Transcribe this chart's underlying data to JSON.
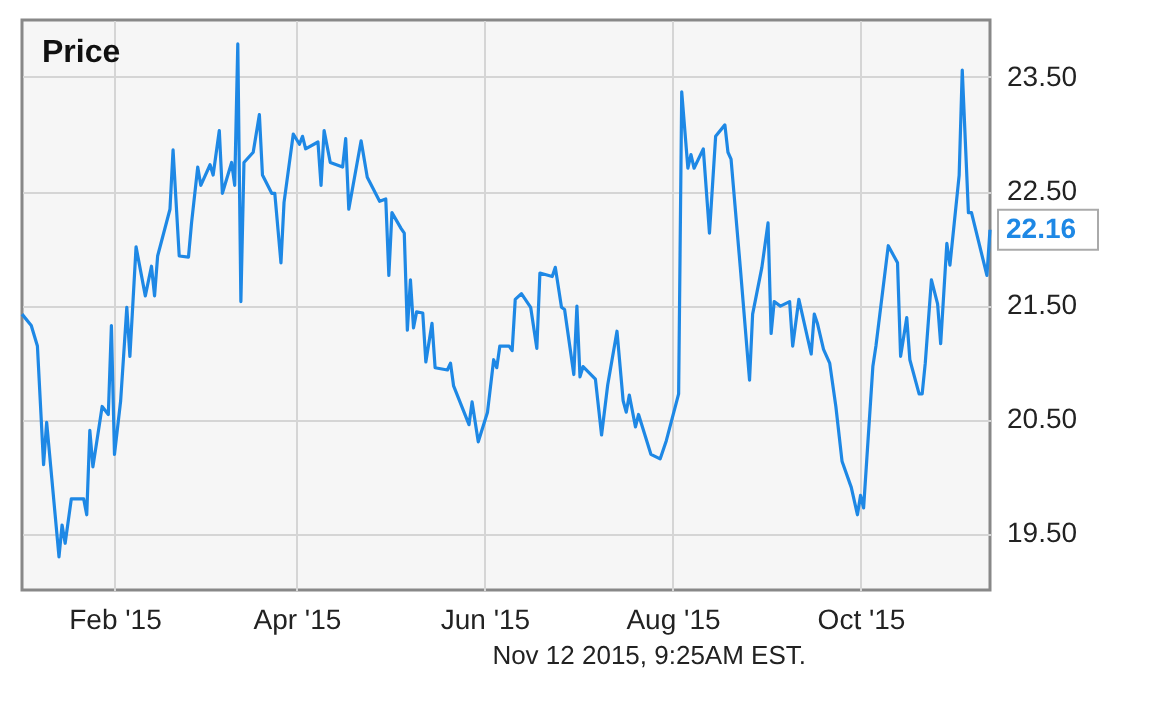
{
  "chart_data": {
    "type": "line",
    "title": "Price",
    "x": [
      "2015-01-02",
      "2015-01-05",
      "2015-01-07",
      "2015-01-09",
      "2015-01-10",
      "2015-01-14",
      "2015-01-15",
      "2015-01-16",
      "2015-01-18",
      "2015-01-22",
      "2015-01-23",
      "2015-01-24",
      "2015-01-25",
      "2015-01-28",
      "2015-01-30",
      "2015-01-31",
      "2015-02-01",
      "2015-02-03",
      "2015-02-05",
      "2015-02-06",
      "2015-02-08",
      "2015-02-11",
      "2015-02-13",
      "2015-02-14",
      "2015-02-15",
      "2015-02-19",
      "2015-02-20",
      "2015-02-22",
      "2015-02-25",
      "2015-02-26",
      "2015-02-28",
      "2015-03-01",
      "2015-03-04",
      "2015-03-05",
      "2015-03-07",
      "2015-03-08",
      "2015-03-11",
      "2015-03-12",
      "2015-03-13",
      "2015-03-14",
      "2015-03-15",
      "2015-03-18",
      "2015-03-20",
      "2015-03-21",
      "2015-03-24",
      "2015-03-25",
      "2015-03-27",
      "2015-03-28",
      "2015-03-31",
      "2015-04-02",
      "2015-04-03",
      "2015-04-04",
      "2015-04-08",
      "2015-04-09",
      "2015-04-10",
      "2015-04-12",
      "2015-04-16",
      "2015-04-17",
      "2015-04-18",
      "2015-04-22",
      "2015-04-24",
      "2015-04-28",
      "2015-04-30",
      "2015-05-01",
      "2015-05-02",
      "2015-05-05",
      "2015-05-06",
      "2015-05-07",
      "2015-05-08",
      "2015-05-09",
      "2015-05-10",
      "2015-05-12",
      "2015-05-13",
      "2015-05-15",
      "2015-05-16",
      "2015-05-20",
      "2015-05-21",
      "2015-05-22",
      "2015-05-27",
      "2015-05-28",
      "2015-05-30",
      "2015-06-02",
      "2015-06-04",
      "2015-06-05",
      "2015-06-06",
      "2015-06-09",
      "2015-06-10",
      "2015-06-11",
      "2015-06-13",
      "2015-06-16",
      "2015-06-18",
      "2015-06-19",
      "2015-06-23",
      "2015-06-24",
      "2015-06-26",
      "2015-06-27",
      "2015-06-30",
      "2015-07-01",
      "2015-07-02",
      "2015-07-03",
      "2015-07-07",
      "2015-07-09",
      "2015-07-11",
      "2015-07-14",
      "2015-07-16",
      "2015-07-17",
      "2015-07-18",
      "2015-07-20",
      "2015-07-21",
      "2015-07-25",
      "2015-07-28",
      "2015-07-30",
      "2015-08-03",
      "2015-08-04",
      "2015-08-06",
      "2015-08-07",
      "2015-08-08",
      "2015-08-11",
      "2015-08-13",
      "2015-08-15",
      "2015-08-18",
      "2015-08-19",
      "2015-08-20",
      "2015-08-23",
      "2015-08-26",
      "2015-08-27",
      "2015-08-30",
      "2015-09-01",
      "2015-09-02",
      "2015-09-03",
      "2015-09-05",
      "2015-09-08",
      "2015-09-09",
      "2015-09-11",
      "2015-09-15",
      "2015-09-16",
      "2015-09-17",
      "2015-09-19",
      "2015-09-21",
      "2015-09-23",
      "2015-09-25",
      "2015-09-28",
      "2015-09-30",
      "2015-10-01",
      "2015-10-02",
      "2015-10-05",
      "2015-10-06",
      "2015-10-10",
      "2015-10-13",
      "2015-10-14",
      "2015-10-16",
      "2015-10-17",
      "2015-10-20",
      "2015-10-21",
      "2015-10-22",
      "2015-10-24",
      "2015-10-26",
      "2015-10-27",
      "2015-10-29",
      "2015-10-30",
      "2015-11-02",
      "2015-11-03",
      "2015-11-05",
      "2015-11-06",
      "2015-11-11",
      "2015-11-12"
    ],
    "series": [
      {
        "color": "#1e88e5",
        "values": [
          21.42,
          21.32,
          21.14,
          20.1,
          20.47,
          19.29,
          19.57,
          19.41,
          19.8,
          19.8,
          19.66,
          20.4,
          20.08,
          20.61,
          20.54,
          21.32,
          20.19,
          20.66,
          21.48,
          21.05,
          22.01,
          21.58,
          21.84,
          21.58,
          21.93,
          22.34,
          22.86,
          21.93,
          21.92,
          22.22,
          22.71,
          22.55,
          22.73,
          22.64,
          23.03,
          22.48,
          22.75,
          22.55,
          23.79,
          21.53,
          22.75,
          22.84,
          23.17,
          22.64,
          22.48,
          22.48,
          21.87,
          22.4,
          23.0,
          22.91,
          22.98,
          22.87,
          22.93,
          22.55,
          23.03,
          22.75,
          22.71,
          22.96,
          22.34,
          22.94,
          22.62,
          22.41,
          22.43,
          21.76,
          22.31,
          22.17,
          22.13,
          21.28,
          21.72,
          21.3,
          21.44,
          21.43,
          21.0,
          21.34,
          20.95,
          20.93,
          20.99,
          20.79,
          20.45,
          20.65,
          20.3,
          20.56,
          21.02,
          20.95,
          21.14,
          21.14,
          21.1,
          21.55,
          21.6,
          21.48,
          21.12,
          21.78,
          21.75,
          21.83,
          21.48,
          21.46,
          20.89,
          21.49,
          20.87,
          20.96,
          20.85,
          20.36,
          20.8,
          21.27,
          20.66,
          20.56,
          20.71,
          20.43,
          20.54,
          20.19,
          20.15,
          20.31,
          20.72,
          23.37,
          22.7,
          22.82,
          22.7,
          22.87,
          22.13,
          22.98,
          23.08,
          22.84,
          22.78,
          21.83,
          20.84,
          21.42,
          21.83,
          22.22,
          21.25,
          21.53,
          21.49,
          21.53,
          21.14,
          21.55,
          21.07,
          21.42,
          21.34,
          21.11,
          20.99,
          20.61,
          20.13,
          19.9,
          19.66,
          19.83,
          19.72,
          20.96,
          21.14,
          22.02,
          21.87,
          21.05,
          21.39,
          21.02,
          20.72,
          20.72,
          20.99,
          21.72,
          21.51,
          21.16,
          22.04,
          21.85,
          22.64,
          23.56,
          22.31,
          22.31,
          21.76,
          22.16
        ]
      }
    ],
    "xlim": [
      "2015-01-02",
      "2015-11-12"
    ],
    "xticks": [
      {
        "value": "2015-02-01",
        "label": "Feb '15"
      },
      {
        "value": "2015-04-01",
        "label": "Apr '15"
      },
      {
        "value": "2015-06-01",
        "label": "Jun '15"
      },
      {
        "value": "2015-08-01",
        "label": "Aug '15"
      },
      {
        "value": "2015-10-01",
        "label": "Oct '15"
      }
    ],
    "ylim": [
      19.0,
      24.0
    ],
    "yticks": [
      {
        "value": 19.5,
        "label": "19.50"
      },
      {
        "value": 20.5,
        "label": "20.50"
      },
      {
        "value": 21.5,
        "label": "21.50"
      },
      {
        "value": 22.5,
        "label": "22.50"
      },
      {
        "value": 23.5,
        "label": "23.50"
      }
    ],
    "grid": true,
    "marker": "none",
    "line_style": "solid",
    "annotations": [
      {
        "text": "22.16",
        "x": "2015-11-12",
        "y": 22.16
      },
      "Nov 12 2015, 9:25AM EST."
    ]
  }
}
